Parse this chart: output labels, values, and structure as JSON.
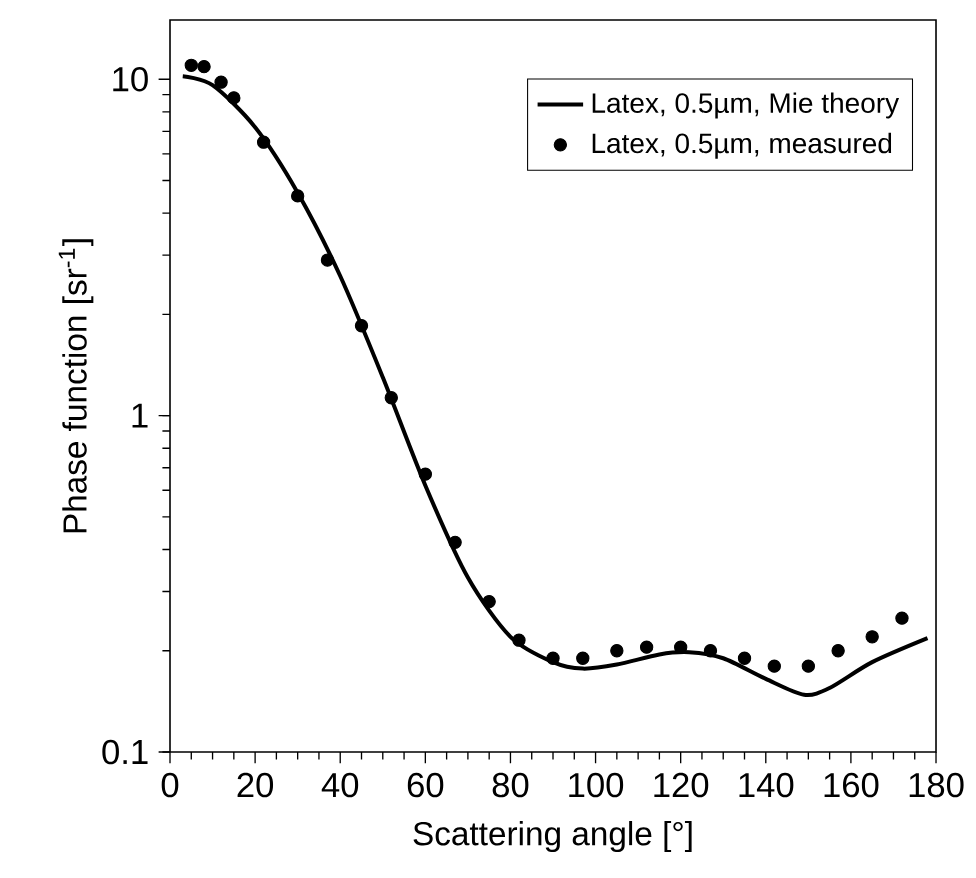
{
  "chart_data": {
    "type": "line",
    "xlabel": "Scattering angle  [°]",
    "ylabel": "Phase function [sr$^{-1}$]",
    "log": "y",
    "xlim": [
      0,
      180
    ],
    "xticks": [
      0,
      20,
      40,
      60,
      80,
      100,
      120,
      140,
      160,
      180
    ],
    "ylim": [
      0.1,
      15
    ],
    "yticks": [
      0.1,
      1,
      10
    ],
    "legend": "top right",
    "grid": false,
    "series": [
      {
        "name": "Latex, 0.5µm, Mie theory",
        "color": "#000000",
        "marker": "none",
        "line_style": "solid",
        "x": [
          3,
          10,
          20,
          30,
          40,
          50,
          60,
          70,
          80,
          90,
          97,
          105,
          115,
          122,
          130,
          140,
          149,
          155,
          165,
          178
        ],
        "values": [
          10.2,
          9.6,
          7.2,
          4.6,
          2.6,
          1.3,
          0.62,
          0.33,
          0.22,
          0.185,
          0.177,
          0.182,
          0.195,
          0.198,
          0.19,
          0.165,
          0.148,
          0.155,
          0.185,
          0.218
        ]
      },
      {
        "name": "Latex, 0.5µm, measured",
        "type": "scatter",
        "color": "#000000",
        "marker": "circle",
        "x": [
          5,
          8,
          12,
          15,
          22,
          30,
          37,
          45,
          52,
          60,
          67,
          75,
          82,
          90,
          97,
          105,
          112,
          120,
          127,
          135,
          142,
          150,
          157,
          165,
          172
        ],
        "values": [
          11,
          10.9,
          9.8,
          8.8,
          6.5,
          4.5,
          2.9,
          1.85,
          1.13,
          0.67,
          0.42,
          0.28,
          0.215,
          0.19,
          0.19,
          0.2,
          0.205,
          0.205,
          0.2,
          0.19,
          0.18,
          0.18,
          0.2,
          0.22,
          0.25
        ]
      }
    ]
  }
}
